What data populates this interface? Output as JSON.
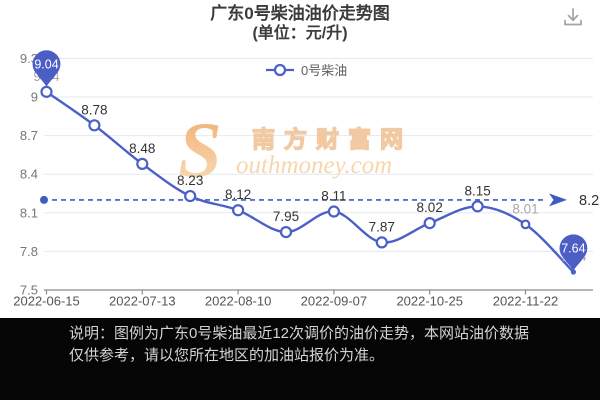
{
  "header": {
    "title_line1": "广东0号柴油油价走势图",
    "title_line2": "(单位：元/升)"
  },
  "legend": {
    "label": "0号柴油"
  },
  "chart_data": {
    "type": "line",
    "title": "广东0号柴油油价走势图 (单位：元/升)",
    "series": [
      {
        "name": "0号柴油",
        "values": [
          9.04,
          8.78,
          8.48,
          8.23,
          8.12,
          7.95,
          8.11,
          7.87,
          8.02,
          8.15,
          8.01,
          7.64
        ]
      }
    ],
    "x_tick_labels": [
      "2022-06-15",
      "2022-07-13",
      "2022-08-10",
      "2022-09-07",
      "2022-10-25",
      "2022-11-22"
    ],
    "x_label_every": 2,
    "y_ticks": [
      9.3,
      9.0,
      8.7,
      8.4,
      8.1,
      7.8,
      7.5
    ],
    "ylim": [
      7.5,
      9.3
    ],
    "grid": true,
    "smooth": true,
    "legend_position": "top-center",
    "reference_line": {
      "value": 8.2,
      "label": "8.2",
      "style": "dashed-arrow"
    },
    "pinned_points": [
      0,
      11
    ],
    "pinned_labels": [
      "9.04",
      "7.64"
    ],
    "muted_label_indices": [
      0,
      10,
      11
    ],
    "small_marker_indices": [
      10
    ]
  },
  "watermark": {
    "swoosh": "S",
    "text_cn": "南方财富网",
    "text_en": "outhmoney.com"
  },
  "footer": {
    "text": "说明：图例为广东0号柴油最近12次调价的油价走势，本网站油价数据仅供参考，请以您所在地区的加油站报价为准。"
  },
  "colors": {
    "line": "#4a60c8",
    "pin": "#4b5ec6",
    "ref_line": "#3e5cc0",
    "grid": "#e6e8f2",
    "axis": "#8a8a8a",
    "y_tick_label": "#777777",
    "x_tick_label": "#555555",
    "data_label": "#333333",
    "muted_label": "#a8a8a8",
    "ref_label": "#333333",
    "watermark_fill": "#f8d2a2",
    "watermark_stroke": "#f0c49a",
    "watermark_swoosh_from": "#eda45f",
    "watermark_swoosh_to": "#fbdcb4",
    "title_text": "#3b3b3b",
    "legend_text": "#5f5f5f",
    "icon": "#a3a3a3",
    "footer_bg": "#050505",
    "footer_text": "#d4d4d4",
    "pin_text": "#ffffff",
    "marker_fill": "#ffffff"
  }
}
